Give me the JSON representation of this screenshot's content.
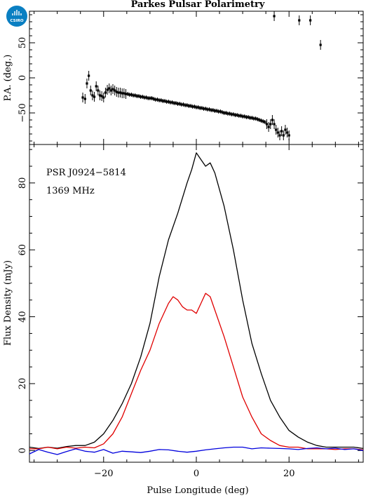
{
  "logo": {
    "text": "CSIRO",
    "color": "#0a7fc2"
  },
  "colors": {
    "total": "#000000",
    "linear": "#e00000",
    "circular": "#0000dd"
  },
  "chart_data": [
    {
      "type": "scatter",
      "title": "Parkes Pulsar Polarimetry",
      "ylabel": "P.A. (deg.)",
      "xlim": [
        -36,
        36
      ],
      "ylim": [
        -95,
        95
      ],
      "yticks": [
        "50",
        "0",
        "−50"
      ],
      "ytick_values": [
        50,
        0,
        -50
      ],
      "points": [
        [
          -24.5,
          -28
        ],
        [
          -24.0,
          -30
        ],
        [
          -23.6,
          -8
        ],
        [
          -23.2,
          3
        ],
        [
          -22.8,
          -18
        ],
        [
          -22.4,
          -25
        ],
        [
          -22.0,
          -27
        ],
        [
          -21.6,
          -12
        ],
        [
          -21.2,
          -18
        ],
        [
          -20.8,
          -25
        ],
        [
          -20.4,
          -26
        ],
        [
          -20.0,
          -28
        ],
        [
          -19.6,
          -21
        ],
        [
          -19.2,
          -17
        ],
        [
          -18.8,
          -15
        ],
        [
          -18.4,
          -18
        ],
        [
          -18.0,
          -16
        ],
        [
          -17.6,
          -18
        ],
        [
          -17.2,
          -20
        ],
        [
          -16.8,
          -21
        ],
        [
          -16.4,
          -21
        ],
        [
          -16.0,
          -22
        ],
        [
          -15.6,
          -22
        ],
        [
          -15.2,
          -23
        ],
        [
          -14.8,
          -23
        ],
        [
          -14.4,
          -24
        ],
        [
          -14.0,
          -24
        ],
        [
          -13.6,
          -25
        ],
        [
          -13.2,
          -25
        ],
        [
          -12.8,
          -26
        ],
        [
          -12.4,
          -26
        ],
        [
          -12.0,
          -27
        ],
        [
          -11.6,
          -27
        ],
        [
          -11.2,
          -28
        ],
        [
          -10.8,
          -28
        ],
        [
          -10.4,
          -29
        ],
        [
          -10.0,
          -29
        ],
        [
          -9.6,
          -29
        ],
        [
          -9.2,
          -30
        ],
        [
          -8.8,
          -31
        ],
        [
          -8.4,
          -31
        ],
        [
          -8.0,
          -32
        ],
        [
          -7.6,
          -32
        ],
        [
          -7.2,
          -33
        ],
        [
          -6.8,
          -33
        ],
        [
          -6.4,
          -34
        ],
        [
          -6.0,
          -34
        ],
        [
          -5.6,
          -35
        ],
        [
          -5.2,
          -35
        ],
        [
          -4.8,
          -36
        ],
        [
          -4.4,
          -36
        ],
        [
          -4.0,
          -37
        ],
        [
          -3.6,
          -37
        ],
        [
          -3.2,
          -38
        ],
        [
          -2.8,
          -38
        ],
        [
          -2.4,
          -39
        ],
        [
          -2.0,
          -39
        ],
        [
          -1.6,
          -40
        ],
        [
          -1.2,
          -40
        ],
        [
          -0.8,
          -41
        ],
        [
          -0.4,
          -41
        ],
        [
          0.0,
          -42
        ],
        [
          0.4,
          -42
        ],
        [
          0.8,
          -43
        ],
        [
          1.2,
          -43
        ],
        [
          1.6,
          -44
        ],
        [
          2.0,
          -44
        ],
        [
          2.4,
          -45
        ],
        [
          2.8,
          -45
        ],
        [
          3.2,
          -46
        ],
        [
          3.6,
          -46
        ],
        [
          4.0,
          -47
        ],
        [
          4.4,
          -47
        ],
        [
          4.8,
          -48
        ],
        [
          5.2,
          -48
        ],
        [
          5.6,
          -49
        ],
        [
          6.0,
          -50
        ],
        [
          6.4,
          -50
        ],
        [
          6.8,
          -51
        ],
        [
          7.2,
          -51
        ],
        [
          7.6,
          -52
        ],
        [
          8.0,
          -52
        ],
        [
          8.4,
          -53
        ],
        [
          8.8,
          -53
        ],
        [
          9.2,
          -54
        ],
        [
          9.6,
          -54
        ],
        [
          10.0,
          -55
        ],
        [
          10.4,
          -55
        ],
        [
          10.8,
          -56
        ],
        [
          11.2,
          -56
        ],
        [
          11.6,
          -57
        ],
        [
          12.0,
          -57
        ],
        [
          12.4,
          -58
        ],
        [
          12.8,
          -58
        ],
        [
          13.2,
          -59
        ],
        [
          13.6,
          -60
        ],
        [
          14.0,
          -61
        ],
        [
          14.4,
          -62
        ],
        [
          14.8,
          -63
        ],
        [
          15.2,
          -66
        ],
        [
          15.6,
          -70
        ],
        [
          16.0,
          -66
        ],
        [
          16.4,
          -60
        ],
        [
          16.8,
          -66
        ],
        [
          17.2,
          -74
        ],
        [
          17.6,
          -78
        ],
        [
          18.0,
          -82
        ],
        [
          18.4,
          -76
        ],
        [
          18.8,
          -82
        ],
        [
          19.2,
          -74
        ],
        [
          19.6,
          -78
        ],
        [
          20.0,
          -82
        ],
        [
          16.8,
          88
        ],
        [
          22.2,
          82
        ],
        [
          24.6,
          82
        ],
        [
          26.8,
          47
        ]
      ]
    },
    {
      "type": "line",
      "title": "PSR J0924−5814",
      "subtitle": "1369 MHz",
      "xlabel": "Pulse Longitude (deg)",
      "ylabel": "Flux Density (mJy)",
      "xlim": [
        -36,
        36
      ],
      "ylim": [
        -3.5,
        91.5
      ],
      "xticks": [
        "−20",
        "0",
        "20"
      ],
      "xtick_values": [
        -20,
        0,
        20
      ],
      "yticks": [
        "0",
        "20",
        "40",
        "60",
        "80"
      ],
      "ytick_values": [
        0,
        20,
        40,
        60,
        80
      ],
      "series": [
        {
          "key": "total",
          "points": [
            [
              -36,
              1
            ],
            [
              -34,
              0.6
            ],
            [
              -32,
              1
            ],
            [
              -30,
              0.7
            ],
            [
              -28,
              1.2
            ],
            [
              -26,
              1.5
            ],
            [
              -24,
              1.5
            ],
            [
              -22,
              2.5
            ],
            [
              -20,
              5
            ],
            [
              -18,
              9
            ],
            [
              -16,
              14
            ],
            [
              -14,
              20
            ],
            [
              -12,
              28
            ],
            [
              -10,
              38
            ],
            [
              -8,
              52
            ],
            [
              -6,
              63
            ],
            [
              -4,
              71
            ],
            [
              -2,
              80
            ],
            [
              -1,
              84
            ],
            [
              0,
              89
            ],
            [
              1,
              87
            ],
            [
              2,
              85
            ],
            [
              3,
              86
            ],
            [
              4,
              83
            ],
            [
              6,
              73
            ],
            [
              8,
              60
            ],
            [
              10,
              45
            ],
            [
              12,
              32
            ],
            [
              14,
              23
            ],
            [
              16,
              15
            ],
            [
              18,
              10
            ],
            [
              20,
              6
            ],
            [
              22,
              4
            ],
            [
              24,
              2.5
            ],
            [
              26,
              1.5
            ],
            [
              28,
              1
            ],
            [
              30,
              1
            ],
            [
              32,
              1
            ],
            [
              34,
              1
            ],
            [
              36,
              0.6
            ]
          ]
        },
        {
          "key": "linear",
          "points": [
            [
              -36,
              0.5
            ],
            [
              -34,
              0.5
            ],
            [
              -32,
              1
            ],
            [
              -30,
              0.5
            ],
            [
              -28,
              1
            ],
            [
              -26,
              0.7
            ],
            [
              -24,
              1
            ],
            [
              -22,
              0.8
            ],
            [
              -20,
              2
            ],
            [
              -18,
              5
            ],
            [
              -16,
              10
            ],
            [
              -14,
              17
            ],
            [
              -12,
              24
            ],
            [
              -10,
              30
            ],
            [
              -8,
              38
            ],
            [
              -6,
              44
            ],
            [
              -5,
              46
            ],
            [
              -4,
              45
            ],
            [
              -3,
              43
            ],
            [
              -2,
              42
            ],
            [
              -1,
              42
            ],
            [
              0,
              41
            ],
            [
              1,
              44
            ],
            [
              2,
              47
            ],
            [
              3,
              46
            ],
            [
              4,
              42
            ],
            [
              6,
              34
            ],
            [
              8,
              25
            ],
            [
              10,
              16
            ],
            [
              12,
              10
            ],
            [
              14,
              5
            ],
            [
              16,
              3
            ],
            [
              18,
              1.5
            ],
            [
              20,
              1
            ],
            [
              22,
              1
            ],
            [
              24,
              0.5
            ],
            [
              26,
              0.5
            ],
            [
              28,
              0.5
            ],
            [
              30,
              0.3
            ],
            [
              32,
              0.5
            ],
            [
              34,
              0.5
            ],
            [
              36,
              0.2
            ]
          ]
        },
        {
          "key": "circular",
          "points": [
            [
              -36,
              -1
            ],
            [
              -34,
              0.3
            ],
            [
              -32,
              -0.5
            ],
            [
              -30,
              -1.2
            ],
            [
              -28,
              -0.3
            ],
            [
              -26,
              0.5
            ],
            [
              -24,
              -0.2
            ],
            [
              -22,
              -0.5
            ],
            [
              -20,
              0.3
            ],
            [
              -18,
              -0.8
            ],
            [
              -16,
              -0.2
            ],
            [
              -14,
              -0.4
            ],
            [
              -12,
              -0.6
            ],
            [
              -10,
              -0.2
            ],
            [
              -8,
              0.3
            ],
            [
              -6,
              0.2
            ],
            [
              -4,
              -0.2
            ],
            [
              -2,
              -0.5
            ],
            [
              0,
              -0.2
            ],
            [
              2,
              0.2
            ],
            [
              4,
              0.5
            ],
            [
              6,
              0.8
            ],
            [
              8,
              1
            ],
            [
              10,
              1
            ],
            [
              12,
              0.5
            ],
            [
              14,
              0.8
            ],
            [
              16,
              0.7
            ],
            [
              18,
              0.6
            ],
            [
              20,
              0.5
            ],
            [
              22,
              0.3
            ],
            [
              24,
              0.6
            ],
            [
              26,
              0.8
            ],
            [
              28,
              0.5
            ],
            [
              30,
              0.7
            ],
            [
              32,
              0.3
            ],
            [
              34,
              0.5
            ],
            [
              36,
              0
            ]
          ]
        }
      ]
    }
  ]
}
